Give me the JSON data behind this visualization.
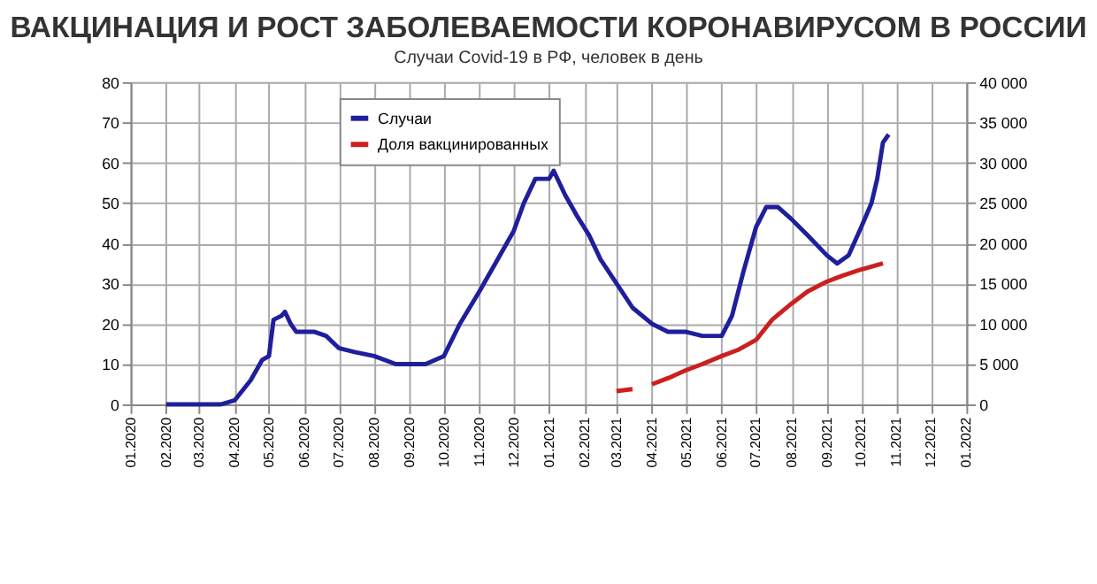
{
  "chart_data": {
    "type": "line",
    "title": "ВАКЦИНАЦИЯ И РОСТ ЗАБОЛЕВАЕМОСТИ КОРОНАВИРУСОМ В РОССИИ",
    "subtitle": "Случаи Covid-19 в РФ, человек в день",
    "series": [
      {
        "name": "Случаи",
        "color": "#1f1f9c",
        "axis": "y2",
        "x": [
          "2020-02-01",
          "2020-03-20",
          "2020-04-01",
          "2020-04-15",
          "2020-04-25",
          "2020-05-01",
          "2020-05-05",
          "2020-05-12",
          "2020-05-15",
          "2020-05-20",
          "2020-05-25",
          "2020-06-10",
          "2020-06-20",
          "2020-07-01",
          "2020-07-15",
          "2020-08-01",
          "2020-08-20",
          "2020-09-01",
          "2020-09-15",
          "2020-10-01",
          "2020-10-15",
          "2020-11-01",
          "2020-11-15",
          "2020-12-01",
          "2020-12-10",
          "2020-12-20",
          "2021-01-01",
          "2021-01-05",
          "2021-01-15",
          "2021-01-25",
          "2021-02-05",
          "2021-02-15",
          "2021-03-01",
          "2021-03-15",
          "2021-04-01",
          "2021-04-15",
          "2021-05-01",
          "2021-05-15",
          "2021-06-01",
          "2021-06-10",
          "2021-06-20",
          "2021-07-01",
          "2021-07-10",
          "2021-07-20",
          "2021-08-01",
          "2021-08-15",
          "2021-09-01",
          "2021-09-10",
          "2021-09-20",
          "2021-10-01",
          "2021-10-10",
          "2021-10-15",
          "2021-10-20",
          "2021-10-25"
        ],
        "values": [
          0,
          0,
          500,
          3000,
          5500,
          6000,
          10500,
          11000,
          11500,
          10000,
          9000,
          9000,
          8500,
          7000,
          6500,
          6000,
          5000,
          5000,
          5000,
          6000,
          10000,
          14000,
          17500,
          21500,
          25000,
          28000,
          28000,
          29000,
          26000,
          23500,
          21000,
          18000,
          15000,
          12000,
          10000,
          9000,
          9000,
          8500,
          8500,
          11000,
          16500,
          22000,
          24500,
          24500,
          23000,
          21000,
          18500,
          17500,
          18500,
          22000,
          25000,
          28000,
          32500,
          33500
        ]
      },
      {
        "name": "Доля вакцинированных",
        "color": "#cc1f1f",
        "x": [
          "2021-03-01",
          "2021-03-15",
          "2021-03-22",
          "2021-04-01",
          "2021-04-15",
          "2021-05-01",
          "2021-05-15",
          "2021-06-01",
          "2021-06-15",
          "2021-07-01",
          "2021-07-15",
          "2021-08-01",
          "2021-08-15",
          "2021-09-01",
          "2021-09-15",
          "2021-10-01",
          "2021-10-20"
        ],
        "values": [
          3.3,
          3.8,
          null,
          5,
          6.5,
          8.5,
          10,
          12,
          13.5,
          16,
          21,
          25,
          28,
          30.5,
          32,
          33.5,
          35
        ]
      }
    ],
    "xlim": [
      "2020-01-01",
      "2022-01-01"
    ],
    "xticks": [
      {
        "value": "2020-01-01",
        "label": "01.2020"
      },
      {
        "value": "2020-02-01",
        "label": "02.2020"
      },
      {
        "value": "2020-03-01",
        "label": "03.2020"
      },
      {
        "value": "2020-04-01",
        "label": "04.2020"
      },
      {
        "value": "2020-05-01",
        "label": "05.2020"
      },
      {
        "value": "2020-06-01",
        "label": "06.2020"
      },
      {
        "value": "2020-07-01",
        "label": "07.2020"
      },
      {
        "value": "2020-08-01",
        "label": "08.2020"
      },
      {
        "value": "2020-09-01",
        "label": "09.2020"
      },
      {
        "value": "2020-10-01",
        "label": "10.2020"
      },
      {
        "value": "2020-11-01",
        "label": "11.2020"
      },
      {
        "value": "2020-12-01",
        "label": "12.2020"
      },
      {
        "value": "2021-01-01",
        "label": "01.2021"
      },
      {
        "value": "2021-02-01",
        "label": "02.2021"
      },
      {
        "value": "2021-03-01",
        "label": "03.2021"
      },
      {
        "value": "2021-04-01",
        "label": "04.2021"
      },
      {
        "value": "2021-05-01",
        "label": "05.2021"
      },
      {
        "value": "2021-06-01",
        "label": "06.2021"
      },
      {
        "value": "2021-07-01",
        "label": "07.2021"
      },
      {
        "value": "2021-08-01",
        "label": "08.2021"
      },
      {
        "value": "2021-09-01",
        "label": "09.2021"
      },
      {
        "value": "2021-10-01",
        "label": "10.2021"
      },
      {
        "value": "2021-11-01",
        "label": "11.2021"
      },
      {
        "value": "2021-12-01",
        "label": "12.2021"
      },
      {
        "value": "2022-01-01",
        "label": "01.2022"
      }
    ],
    "ylim": [
      0,
      80
    ],
    "yticks": [
      0,
      10,
      20,
      30,
      40,
      50,
      60,
      70,
      80
    ],
    "y2lim": [
      0,
      40000
    ],
    "y2ticks": [
      0,
      {
        "value": 5000,
        "label": "5 000"
      },
      {
        "value": 10000,
        "label": "10 000"
      },
      {
        "value": 15000,
        "label": "15 000"
      },
      {
        "value": 20000,
        "label": "20 000"
      },
      {
        "value": 25000,
        "label": "25 000"
      },
      {
        "value": 30000,
        "label": "30 000"
      },
      {
        "value": 35000,
        "label": "35 000"
      },
      {
        "value": 40000,
        "label": "40 000"
      }
    ],
    "grid": true,
    "legend": "top",
    "marker": "none",
    "line_style": "solid"
  }
}
